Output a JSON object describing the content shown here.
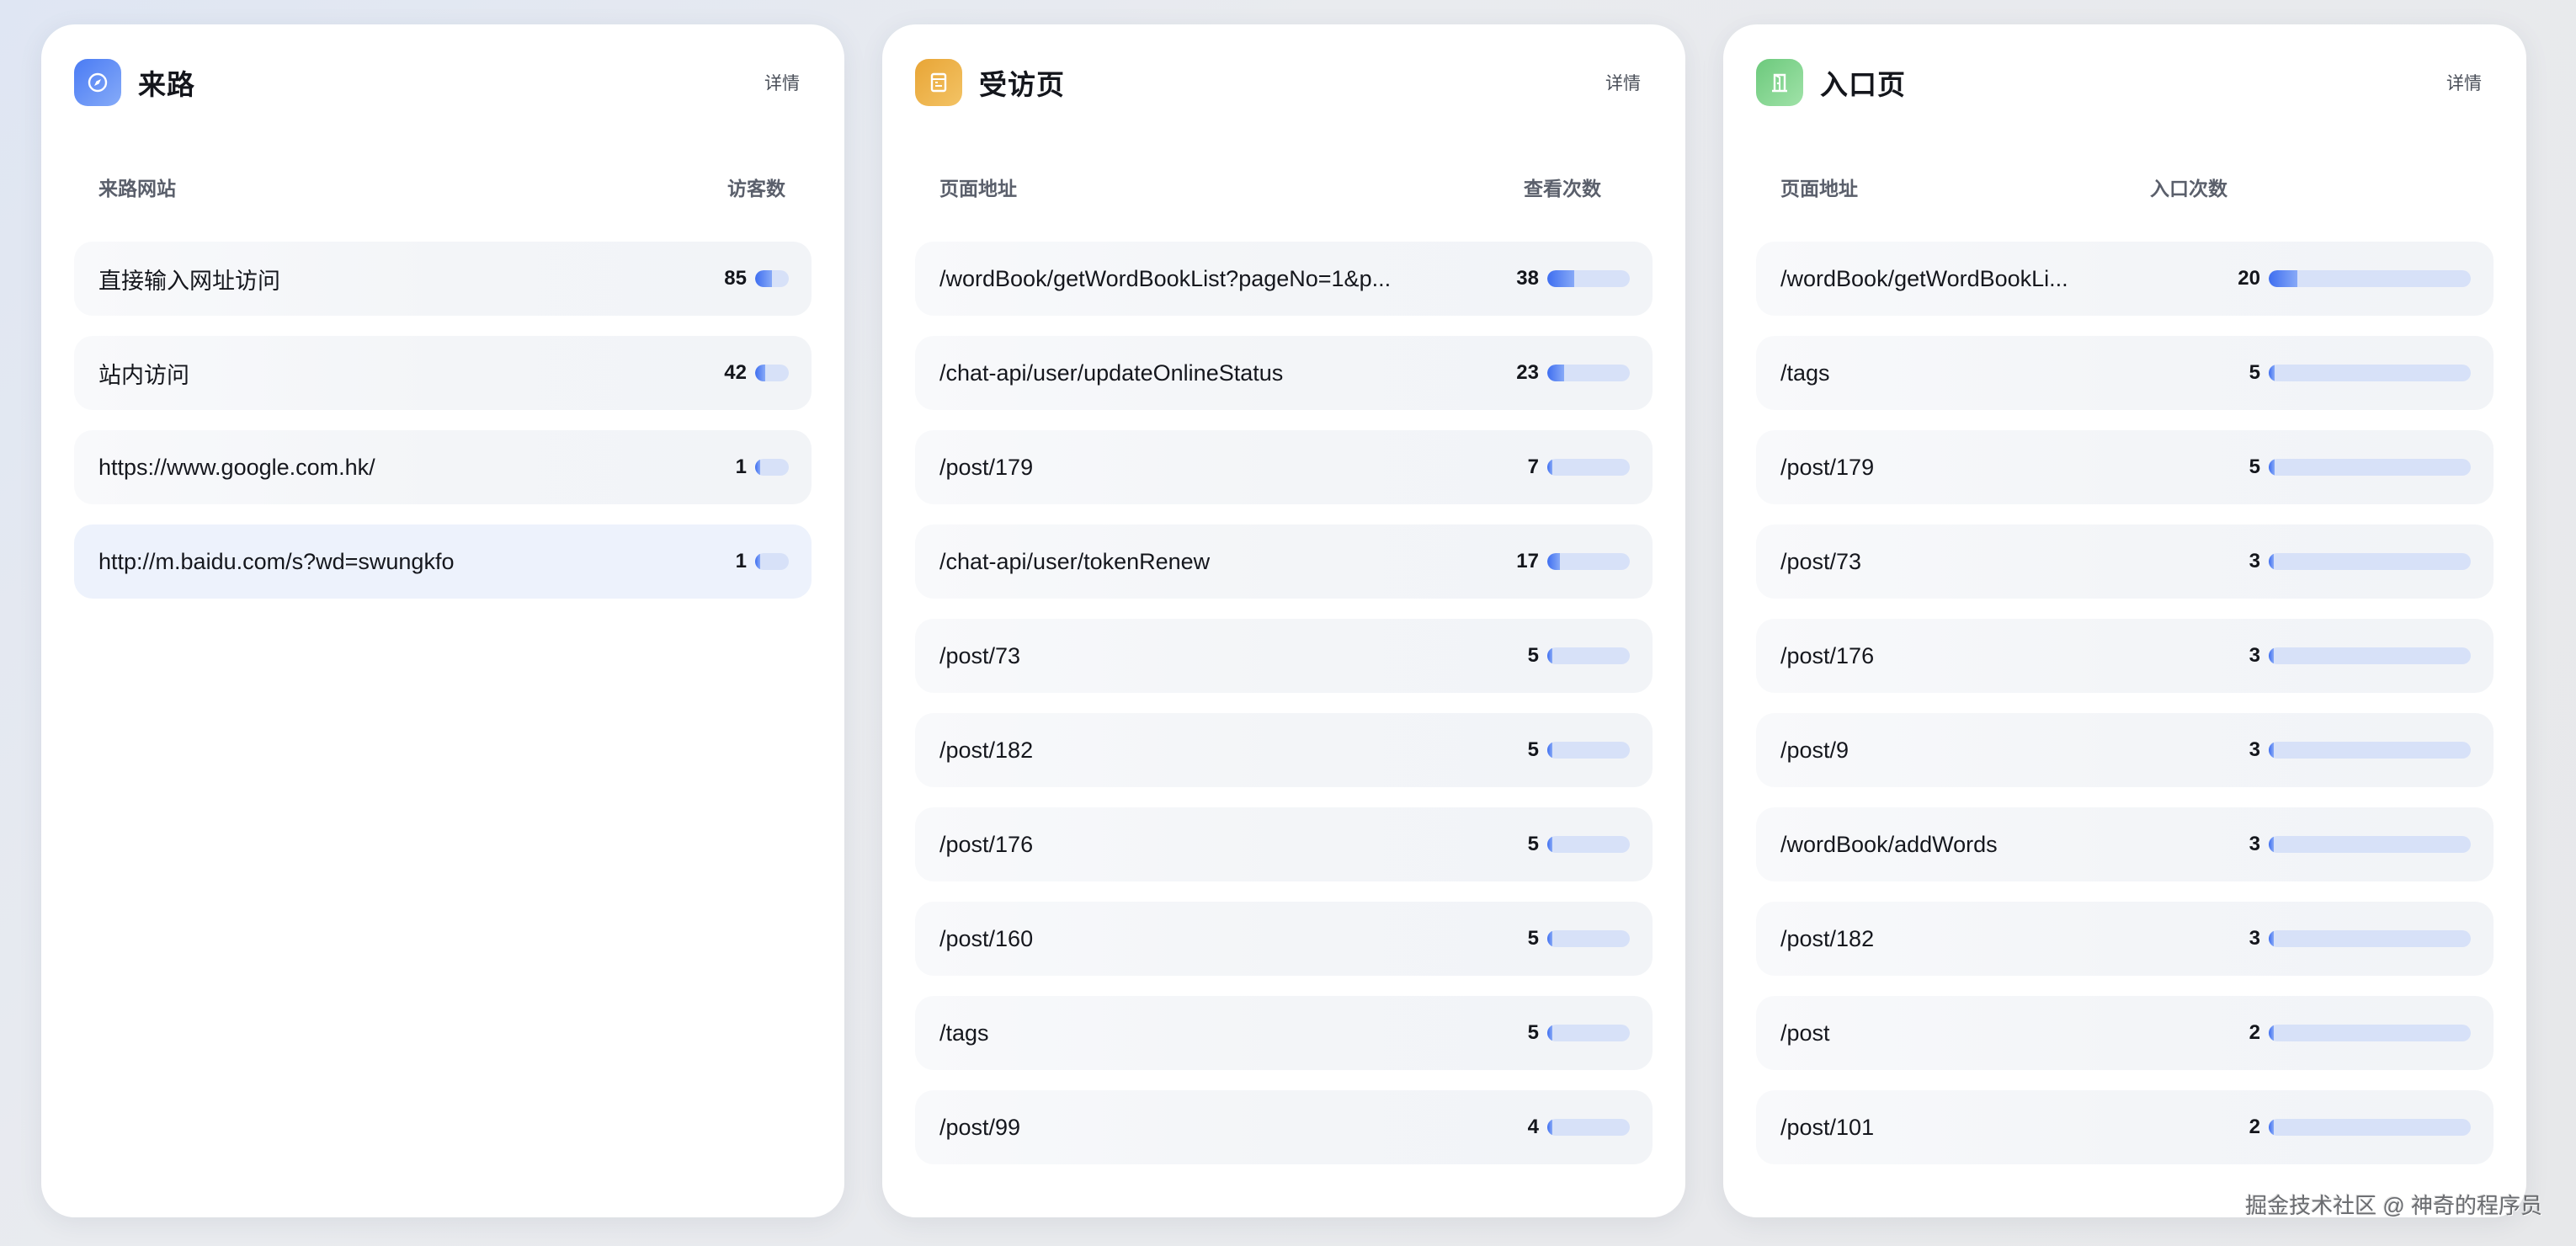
{
  "cards": [
    {
      "title": "来路",
      "icon": "compass-icon",
      "icon_colors": [
        "#4a7bf4",
        "#86abf8"
      ],
      "detail_label": "详情",
      "columns": [
        "来路网站",
        "访客数"
      ],
      "rows": [
        {
          "name": "直接输入网址访问",
          "value": 85,
          "fill": 0.5
        },
        {
          "name": "站内访问",
          "value": 42,
          "fill": 0.3
        },
        {
          "name": "https://www.google.com.hk/",
          "value": 1,
          "fill": 0.01
        },
        {
          "name": "http://m.baidu.com/s?wd=swungkfo",
          "value": 1,
          "fill": 0.01,
          "active": true
        }
      ]
    },
    {
      "title": "受访页",
      "icon": "page-icon",
      "icon_colors": [
        "#e8a536",
        "#f3c365"
      ],
      "detail_label": "详情",
      "columns": [
        "页面地址",
        "查看次数"
      ],
      "rows": [
        {
          "name": "/wordBook/getWordBookList?pageNo=1&p...",
          "value": 38,
          "fill": 0.33
        },
        {
          "name": "/chat-api/user/updateOnlineStatus",
          "value": 23,
          "fill": 0.2
        },
        {
          "name": "/post/179",
          "value": 7,
          "fill": 0.06
        },
        {
          "name": "/chat-api/user/tokenRenew",
          "value": 17,
          "fill": 0.15
        },
        {
          "name": "/post/73",
          "value": 5,
          "fill": 0.04
        },
        {
          "name": "/post/182",
          "value": 5,
          "fill": 0.04
        },
        {
          "name": "/post/176",
          "value": 5,
          "fill": 0.04
        },
        {
          "name": "/post/160",
          "value": 5,
          "fill": 0.04
        },
        {
          "name": "/tags",
          "value": 5,
          "fill": 0.04
        },
        {
          "name": "/post/99",
          "value": 4,
          "fill": 0.035
        }
      ]
    },
    {
      "title": "入口页",
      "icon": "door-icon",
      "icon_colors": [
        "#6cc97c",
        "#a0e2a8"
      ],
      "detail_label": "详情",
      "columns": [
        "页面地址",
        "入口次数"
      ],
      "rows": [
        {
          "name": "/wordBook/getWordBookLi...",
          "value": 20,
          "fill": 0.14
        },
        {
          "name": "/tags",
          "value": 5,
          "fill": 0.03
        },
        {
          "name": "/post/179",
          "value": 5,
          "fill": 0.03
        },
        {
          "name": "/post/73",
          "value": 3,
          "fill": 0.02
        },
        {
          "name": "/post/176",
          "value": 3,
          "fill": 0.02
        },
        {
          "name": "/post/9",
          "value": 3,
          "fill": 0.02
        },
        {
          "name": "/wordBook/addWords",
          "value": 3,
          "fill": 0.02
        },
        {
          "name": "/post/182",
          "value": 3,
          "fill": 0.02
        },
        {
          "name": "/post",
          "value": 2,
          "fill": 0.015
        },
        {
          "name": "/post/101",
          "value": 2,
          "fill": 0.015
        }
      ]
    }
  ],
  "watermark": "掘金技术社区 @ 神奇的程序员"
}
